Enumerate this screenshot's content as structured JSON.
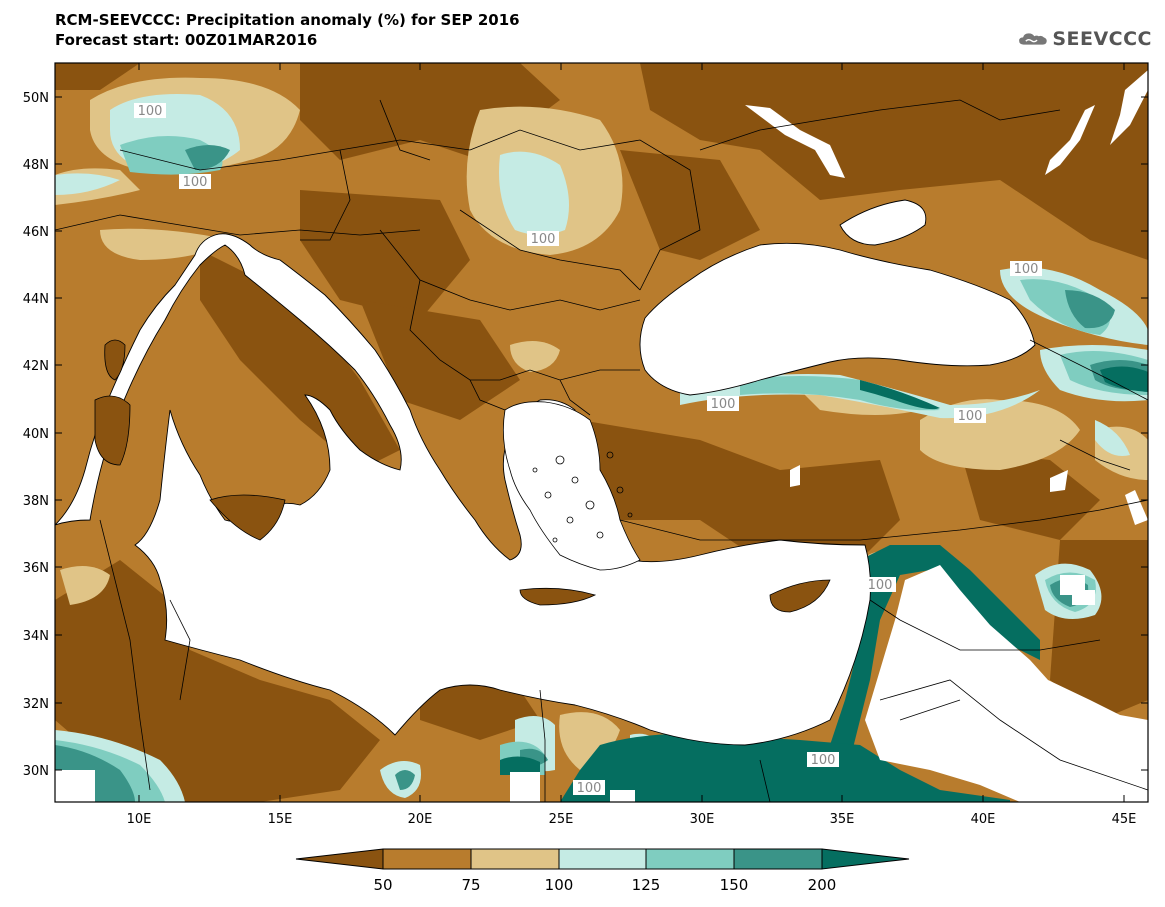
{
  "header": {
    "title_line1": "RCM-SEEVCCC: Precipitation anomaly (%) for SEP 2016",
    "title_line2": "Forecast start: 00Z01MAR2016"
  },
  "logo": {
    "text": "SEEVCCC",
    "icon": "cloud-logo-icon"
  },
  "map": {
    "lat_labels": [
      "50N",
      "48N",
      "46N",
      "44N",
      "42N",
      "40N",
      "38N",
      "36N",
      "34N",
      "32N",
      "30N"
    ],
    "lon_labels": [
      "10E",
      "15E",
      "20E",
      "25E",
      "30E",
      "35E",
      "40E",
      "45E"
    ],
    "contour_labels": [
      "100",
      "100",
      "100",
      "100",
      "100",
      "100",
      "100",
      "100",
      "100"
    ],
    "colors": {
      "lt50": "#8a5310",
      "c50_75": "#b87c2d",
      "c75_100": "#e0c487",
      "c100_125": "#c5ebe4",
      "c125_150": "#7fcdc0",
      "c150_200": "#3a9488",
      "gt200": "#056e60",
      "sea": "#ffffff"
    }
  },
  "colorbar": {
    "labels": [
      "50",
      "75",
      "100",
      "125",
      "150",
      "200"
    ],
    "colors": [
      "#8a5310",
      "#b87c2d",
      "#e0c487",
      "#c5ebe4",
      "#7fcdc0",
      "#3a9488",
      "#056e60"
    ]
  }
}
